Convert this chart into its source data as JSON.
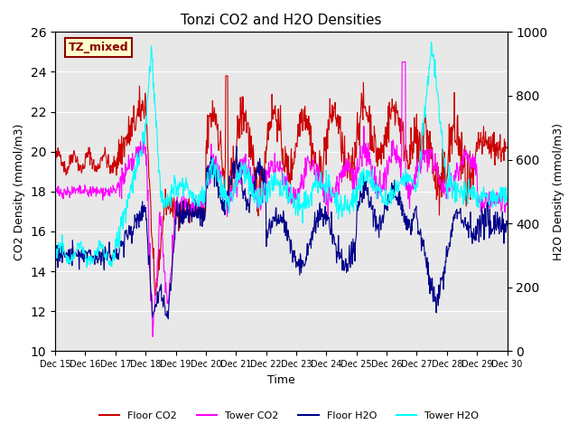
{
  "title": "Tonzi CO2 and H2O Densities",
  "xlabel": "Time",
  "ylabel_left": "CO2 Density (mmol/m3)",
  "ylabel_right": "H2O Density (mmol/m3)",
  "ylim_left": [
    10,
    26
  ],
  "ylim_right": [
    0,
    1000
  ],
  "annotation": "TZ_mixed",
  "annotation_color": "#8B0000",
  "annotation_bg": "#FFFFCC",
  "colors": {
    "floor_co2": "#CC0000",
    "tower_co2": "#FF00FF",
    "floor_h2o": "#00008B",
    "tower_h2o": "#00FFFF"
  },
  "legend_labels": [
    "Floor CO2",
    "Tower CO2",
    "Floor H2O",
    "Tower H2O"
  ],
  "background_color": "#E8E8E8",
  "n_points": 960
}
